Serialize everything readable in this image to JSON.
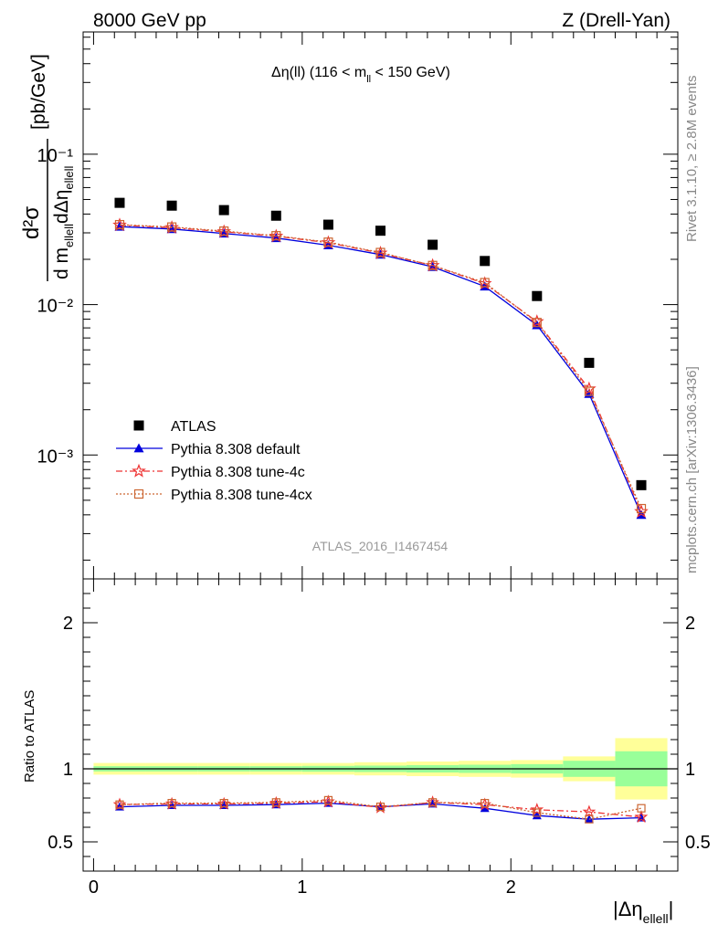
{
  "header": {
    "left": "8000 GeV pp",
    "right": "Z (Drell-Yan)"
  },
  "side_text": {
    "rivet": "Rivet 3.1.10, ≥ 2.8M events",
    "mcplots": "mcplots.cern.ch [arXiv:1306.3436]"
  },
  "main_title": {
    "pre": "Δη(ll) (116 < m",
    "sub": "ll",
    "post": " < 150 GeV)"
  },
  "ylabel": {
    "num": "d²σ",
    "den_d": "d m",
    "den_sub1": "ellell",
    "den_deta": "dΔη",
    "den_sub2": "ellell",
    "unit": "[pb/GeV]"
  },
  "xlabel": {
    "main": "|Δη",
    "sub": "ellell",
    "close": "|"
  },
  "ratio_ylabel": "Ratio to ATLAS",
  "watermark": "ATLAS_2016_I1467454",
  "chart_data": {
    "type": "scatter",
    "x": [
      0.125,
      0.375,
      0.625,
      0.875,
      1.125,
      1.375,
      1.625,
      1.875,
      2.125,
      2.375,
      2.625
    ],
    "xlim": [
      -0.05,
      2.8
    ],
    "x_ticks": [
      "0",
      "1",
      "2"
    ],
    "main_ylim": [
      0.00015,
      0.65
    ],
    "main_yscale": "log",
    "main_y_ticks": [
      "10⁻³",
      "10⁻²",
      "10⁻¹"
    ],
    "ratio_ylim": [
      0.3,
      2.3
    ],
    "ratio_y_ticks": [
      "0.5",
      "1",
      "2"
    ],
    "legend_position": "lower-left",
    "series": [
      {
        "name": "ATLAS",
        "marker": "square",
        "color": "#000000",
        "values": [
          0.0475,
          0.0455,
          0.0425,
          0.039,
          0.034,
          0.031,
          0.025,
          0.0195,
          0.0114,
          0.0041,
          0.00063
        ],
        "ratio": [
          1,
          1,
          1,
          1,
          1,
          1,
          1,
          1,
          1,
          1,
          1
        ]
      },
      {
        "name": "Pythia 8.308 default",
        "marker": "triangle",
        "color": "#0000dd",
        "line": "solid",
        "values": [
          0.033,
          0.0318,
          0.0297,
          0.0277,
          0.0248,
          0.0215,
          0.0178,
          0.0132,
          0.0073,
          0.00255,
          0.0004
        ],
        "ratio": [
          0.74,
          0.75,
          0.75,
          0.755,
          0.765,
          0.74,
          0.76,
          0.73,
          0.68,
          0.655,
          0.665
        ]
      },
      {
        "name": "Pythia 8.308 tune-4c",
        "marker": "star",
        "color": "#ee3333",
        "line": "dashdot",
        "values": [
          0.0338,
          0.0325,
          0.0305,
          0.0285,
          0.0258,
          0.022,
          0.0182,
          0.0138,
          0.0077,
          0.00275,
          0.00042
        ],
        "ratio": [
          0.755,
          0.76,
          0.76,
          0.765,
          0.775,
          0.735,
          0.77,
          0.755,
          0.72,
          0.705,
          0.67
        ]
      },
      {
        "name": "Pythia 8.308 tune-4cx",
        "marker": "open-square",
        "color": "#cc6633",
        "line": "dotted",
        "values": [
          0.034,
          0.0328,
          0.0308,
          0.0287,
          0.026,
          0.0222,
          0.0182,
          0.014,
          0.0076,
          0.00265,
          0.00044
        ],
        "ratio": [
          0.755,
          0.765,
          0.765,
          0.77,
          0.785,
          0.74,
          0.77,
          0.765,
          0.7,
          0.655,
          0.73
        ]
      }
    ],
    "uncertainty_band": {
      "yellow_half": [
        0.04,
        0.04,
        0.04,
        0.04,
        0.04,
        0.045,
        0.05,
        0.055,
        0.06,
        0.085,
        0.21
      ],
      "green_half": [
        0.018,
        0.018,
        0.018,
        0.018,
        0.02,
        0.022,
        0.025,
        0.028,
        0.032,
        0.055,
        0.12
      ],
      "colors": {
        "yellow": "#ffff99",
        "green": "#99ff99"
      }
    }
  }
}
